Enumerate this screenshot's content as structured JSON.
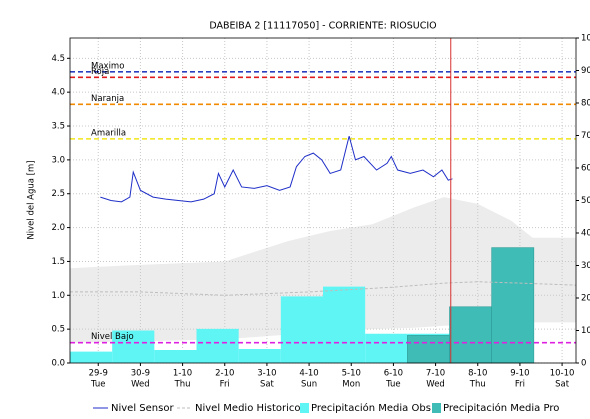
{
  "chart_data": {
    "type": "line",
    "title": "DABEIBA 2   [11117050] - CORRIENTE: RIOSUCIO",
    "ylabel": "Nivel del Agua [m]",
    "xlim": [
      -0.67,
      11.33
    ],
    "xticks": [
      {
        "value": 0,
        "label": "29-9"
      },
      {
        "value": 1,
        "label": "30-9"
      },
      {
        "value": 2,
        "label": "1-10"
      },
      {
        "value": 3,
        "label": "2-10"
      },
      {
        "value": 4,
        "label": "3-10"
      },
      {
        "value": 5,
        "label": "4-10"
      },
      {
        "value": 6,
        "label": "5-10"
      },
      {
        "value": 7,
        "label": "6-10"
      },
      {
        "value": 8,
        "label": "7-10"
      },
      {
        "value": 9,
        "label": "8-10"
      },
      {
        "value": 10,
        "label": "9-10"
      },
      {
        "value": 11,
        "label": "10-10"
      }
    ],
    "xtick_days": [
      "Tue",
      "Wed",
      "Thu",
      "Fri",
      "Sat",
      "Sun",
      "Mon",
      "Tue",
      "Wed",
      "Thu",
      "Fri",
      "Sat"
    ],
    "ylim": [
      0,
      4.8
    ],
    "yticks": [
      {
        "value": 0,
        "label": "0.0"
      },
      0.5,
      {
        "value": 1,
        "label": "1.0"
      },
      1.5,
      {
        "value": 2,
        "label": "2.0"
      },
      2.5,
      {
        "value": 3,
        "label": "3.0"
      },
      3.5,
      {
        "value": 4,
        "label": "4.0"
      },
      4.5
    ],
    "y2lim": [
      0,
      100
    ],
    "y2ticks": [
      0,
      10,
      20,
      30,
      40,
      50,
      60,
      70,
      80,
      90,
      100
    ],
    "grid": true,
    "band": {
      "color": "#ececec",
      "x": [
        -0.67,
        1,
        3,
        4.5,
        5.5,
        6.5,
        7.5,
        8.2,
        9,
        9.8,
        10.3,
        11.33
      ],
      "upper": [
        1.4,
        1.45,
        1.5,
        1.8,
        1.95,
        2.05,
        2.3,
        2.45,
        2.35,
        2.1,
        1.85,
        1.85
      ],
      "lower": [
        0.3,
        0.32,
        0.35,
        0.42,
        0.48,
        0.5,
        0.52,
        0.55,
        0.56,
        0.58,
        0.6,
        0.6
      ]
    },
    "thresholds": [
      {
        "label": "Maximo",
        "value": 4.3,
        "color": "#2a3fbf"
      },
      {
        "label": "Roja",
        "value": 4.22,
        "color": "#e01b1b"
      },
      {
        "label": "Naranja",
        "value": 3.82,
        "color": "#f08a00"
      },
      {
        "label": "Amarilla",
        "value": 3.31,
        "color": "#f2e51a"
      },
      {
        "label": "Nivel Bajo",
        "value": 0.3,
        "color": "#e020e0"
      }
    ],
    "now_x": 8.36,
    "now_color": "#d93030",
    "series": [
      {
        "name": "Nivel Sensor",
        "type": "line",
        "color": "#1f2fc8",
        "x": [
          0.05,
          0.3,
          0.55,
          0.75,
          0.83,
          1.0,
          1.3,
          1.6,
          1.9,
          2.2,
          2.5,
          2.75,
          2.85,
          3.0,
          3.2,
          3.4,
          3.7,
          4.0,
          4.3,
          4.55,
          4.7,
          4.9,
          5.1,
          5.3,
          5.5,
          5.75,
          5.95,
          6.1,
          6.3,
          6.6,
          6.85,
          6.95,
          7.1,
          7.4,
          7.7,
          7.95,
          8.15,
          8.3,
          8.4
        ],
        "values": [
          2.45,
          2.4,
          2.38,
          2.45,
          2.82,
          2.55,
          2.45,
          2.42,
          2.4,
          2.38,
          2.42,
          2.5,
          2.8,
          2.6,
          2.85,
          2.6,
          2.58,
          2.62,
          2.55,
          2.6,
          2.9,
          3.05,
          3.1,
          3.0,
          2.8,
          2.85,
          3.35,
          3.0,
          3.05,
          2.85,
          2.95,
          3.05,
          2.85,
          2.8,
          2.85,
          2.75,
          2.85,
          2.7,
          2.72
        ]
      },
      {
        "name": "Nivel Medio Historico",
        "type": "line",
        "dash": true,
        "color": "#bdbdbd",
        "x": [
          -0.67,
          1,
          3,
          5,
          7,
          8.2,
          9,
          10,
          11.33
        ],
        "values": [
          1.05,
          1.05,
          1.0,
          1.05,
          1.12,
          1.18,
          1.2,
          1.18,
          1.15
        ]
      },
      {
        "name": "Precipitación Media Obs",
        "type": "bar",
        "axis": "y2",
        "color": "#5ff5f5",
        "bins": [
          -0.67,
          0.33,
          1.33,
          2.33,
          3.33,
          4.33,
          5.33,
          6.33,
          7.33,
          8.33
        ],
        "values": [
          3.5,
          10,
          4,
          10.5,
          4.3,
          20.5,
          23.5,
          9,
          9
        ]
      },
      {
        "name": "Precipitación Media Pro",
        "type": "bar",
        "axis": "y2",
        "color": "#40bcb6",
        "bins": [
          7.33,
          8.33,
          9.33,
          10.33
        ],
        "values": [
          8.5,
          17.3,
          35.5
        ]
      }
    ]
  }
}
